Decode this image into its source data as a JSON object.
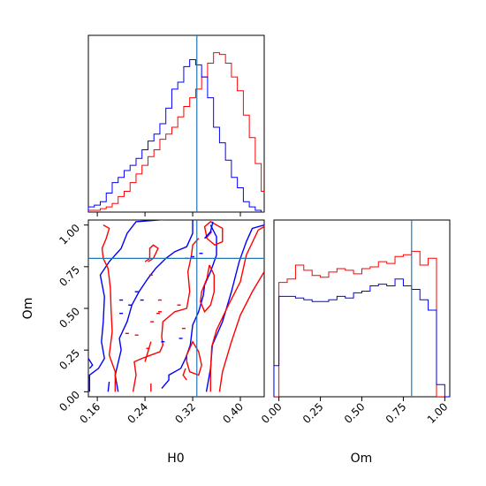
{
  "chart_data": {
    "type": "corner",
    "parameters": [
      "H0",
      "Om"
    ],
    "truths": {
      "H0": 0.327,
      "Om": 0.8
    },
    "truth_color": "#1f77b4",
    "series": [
      {
        "color": "#ff0000"
      },
      {
        "color": "#0000ff"
      }
    ],
    "axes": {
      "H0": {
        "label": "H0",
        "range": [
          0.145,
          0.44
        ],
        "ticks": [
          0.16,
          0.24,
          0.32,
          0.4
        ],
        "tick_labels": [
          "0.16",
          "0.24",
          "0.32",
          "0.40"
        ]
      },
      "Om": {
        "label": "Om",
        "range": [
          -0.03,
          1.03
        ],
        "ticks": [
          0.0,
          0.25,
          0.5,
          0.75,
          1.0
        ],
        "tick_labels": [
          "0.00",
          "0.25",
          "0.50",
          "0.75",
          "1.00"
        ]
      }
    },
    "hist_H0": {
      "bin_edges": [
        0.145,
        0.155,
        0.165,
        0.175,
        0.185,
        0.195,
        0.205,
        0.215,
        0.225,
        0.235,
        0.245,
        0.255,
        0.265,
        0.275,
        0.285,
        0.295,
        0.305,
        0.315,
        0.325,
        0.335,
        0.345,
        0.355,
        0.365,
        0.375,
        0.385,
        0.395,
        0.405,
        0.415,
        0.425,
        0.435,
        0.445
      ],
      "red": [
        0.01,
        0.01,
        0.02,
        0.03,
        0.05,
        0.09,
        0.12,
        0.17,
        0.22,
        0.27,
        0.32,
        0.36,
        0.42,
        0.45,
        0.49,
        0.55,
        0.61,
        0.66,
        0.71,
        0.78,
        0.86,
        0.92,
        0.91,
        0.86,
        0.78,
        0.7,
        0.56,
        0.43,
        0.28,
        0.12
      ],
      "blue": [
        0.03,
        0.04,
        0.06,
        0.11,
        0.17,
        0.2,
        0.24,
        0.27,
        0.31,
        0.36,
        0.41,
        0.45,
        0.51,
        0.6,
        0.71,
        0.75,
        0.84,
        0.88,
        0.85,
        0.78,
        0.66,
        0.49,
        0.4,
        0.3,
        0.2,
        0.14,
        0.06,
        0.03,
        0.01,
        0.0
      ]
    },
    "hist_Om": {
      "bin_edges": [
        -0.03,
        0.0,
        0.05,
        0.1,
        0.15,
        0.2,
        0.25,
        0.3,
        0.35,
        0.4,
        0.45,
        0.5,
        0.55,
        0.6,
        0.65,
        0.7,
        0.75,
        0.8,
        0.85,
        0.9,
        0.95,
        1.0,
        1.03
      ],
      "red": [
        0.0,
        0.66,
        0.68,
        0.76,
        0.73,
        0.7,
        0.69,
        0.72,
        0.74,
        0.73,
        0.71,
        0.74,
        0.75,
        0.78,
        0.77,
        0.81,
        0.82,
        0.84,
        0.76,
        0.8,
        0.0,
        0.0
      ],
      "blue": [
        0.18,
        0.58,
        0.58,
        0.57,
        0.56,
        0.55,
        0.55,
        0.56,
        0.58,
        0.57,
        0.6,
        0.61,
        0.64,
        0.65,
        0.64,
        0.68,
        0.64,
        0.62,
        0.56,
        0.5,
        0.07,
        0.0
      ]
    }
  }
}
